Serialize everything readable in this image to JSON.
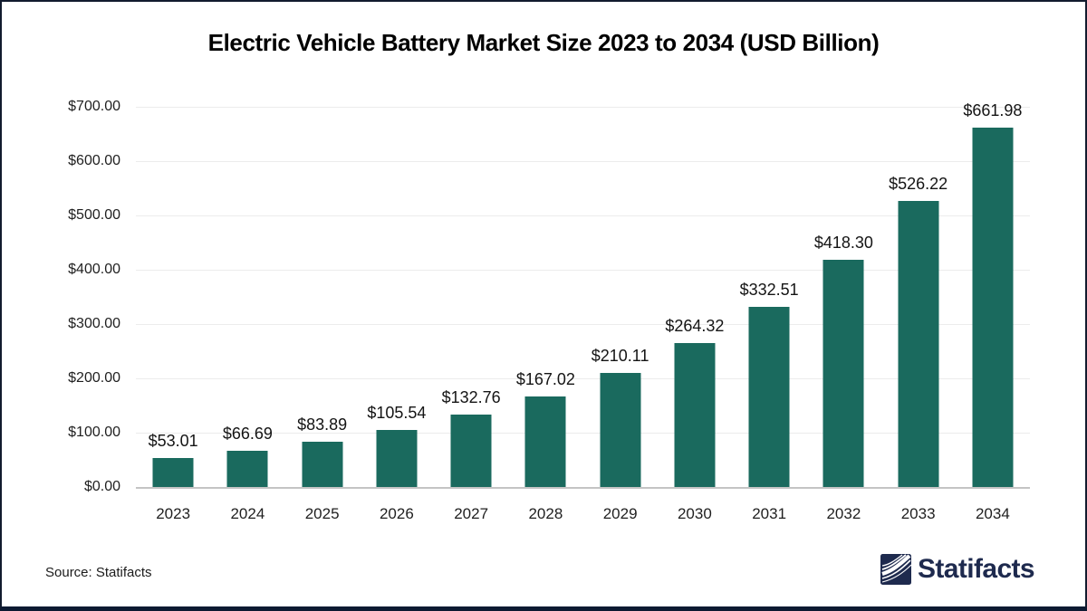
{
  "page": {
    "background": "#ffffff",
    "frame_border_color": "#121B2E",
    "bottom_bar_color": "#0C1A32"
  },
  "chart_data": {
    "type": "bar",
    "title": "Electric Vehicle Battery Market Size 2023 to 2034 (USD Billion)",
    "categories": [
      "2023",
      "2024",
      "2025",
      "2026",
      "2027",
      "2028",
      "2029",
      "2030",
      "2031",
      "2032",
      "2033",
      "2034"
    ],
    "values": [
      53.01,
      66.69,
      83.89,
      105.54,
      132.76,
      167.02,
      210.11,
      264.32,
      332.51,
      418.3,
      526.22,
      661.98
    ],
    "data_labels": [
      "$53.01",
      "$66.69",
      "$83.89",
      "$105.54",
      "$132.76",
      "$167.02",
      "$210.11",
      "$264.32",
      "$332.51",
      "$418.30",
      "$526.22",
      "$661.98"
    ],
    "xlabel": "",
    "ylabel": "",
    "ylim": [
      0,
      700
    ],
    "ytick_step": 100,
    "ytick_labels": [
      "$0.00",
      "$100.00",
      "$200.00",
      "$300.00",
      "$400.00",
      "$500.00",
      "$600.00",
      "$700.00"
    ],
    "grid": "horizontal",
    "legend": "none",
    "bar_color": "#1A6A5E",
    "gridline_color": "#ECECEC",
    "axis_line_color": "#C4C4C4",
    "value_label_color": "#141414",
    "tick_label_color": "#1F1F1F"
  },
  "footer": {
    "source_label": "Source: Statifacts",
    "brand_name": "Statifacts",
    "brand_color": "#1E2A4E"
  },
  "icons": {
    "brand_logo": "statifacts-wave-icon"
  }
}
